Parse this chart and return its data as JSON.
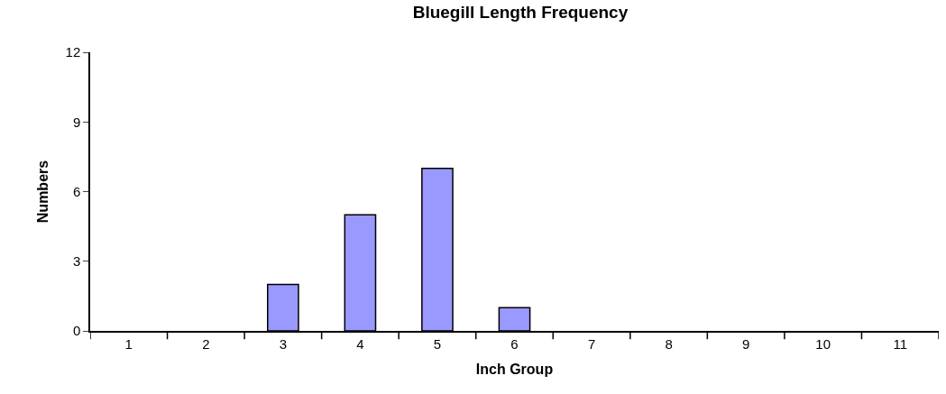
{
  "chart_data": {
    "type": "bar",
    "title": "Bluegill Length Frequency",
    "xlabel": "Inch Group",
    "ylabel": "Numbers",
    "categories": [
      "1",
      "2",
      "3",
      "4",
      "5",
      "6",
      "7",
      "8",
      "9",
      "10",
      "11"
    ],
    "values": [
      0,
      0,
      2,
      5,
      7,
      1,
      0,
      0,
      0,
      0,
      0
    ],
    "color": "#9999ff",
    "ylim": [
      0,
      12
    ],
    "yticks": [
      0,
      3,
      6,
      9,
      12
    ],
    "legend": false
  }
}
